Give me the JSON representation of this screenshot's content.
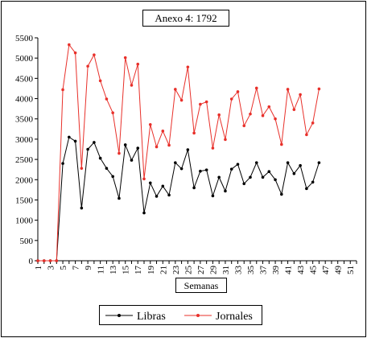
{
  "chart_data": {
    "type": "line",
    "title": "Anexo 4: 1792",
    "xlabel": "Semanas",
    "ylabel": "",
    "ylim": [
      0,
      5500
    ],
    "ytick_step": 500,
    "xlim": [
      1,
      52
    ],
    "x_tick_labels": [
      1,
      3,
      5,
      7,
      9,
      11,
      13,
      15,
      17,
      19,
      21,
      23,
      25,
      27,
      29,
      31,
      33,
      35,
      37,
      39,
      41,
      43,
      45,
      47,
      49,
      51
    ],
    "grid": false,
    "legend_position": "bottom",
    "x": [
      1,
      2,
      3,
      4,
      5,
      6,
      7,
      8,
      9,
      10,
      11,
      12,
      13,
      14,
      15,
      16,
      17,
      18,
      19,
      20,
      21,
      22,
      23,
      24,
      25,
      26,
      27,
      28,
      29,
      30,
      31,
      32,
      33,
      34,
      35,
      36,
      37,
      38,
      39,
      40,
      41,
      42,
      43,
      44,
      45,
      46
    ],
    "series": [
      {
        "name": "Libras",
        "color": "#000000",
        "values": [
          0,
          0,
          0,
          0,
          2400,
          3050,
          2950,
          1300,
          2750,
          2920,
          2530,
          2280,
          2080,
          1540,
          2860,
          2480,
          2780,
          1180,
          1920,
          1590,
          1840,
          1620,
          2420,
          2270,
          2740,
          1800,
          2210,
          2240,
          1600,
          2060,
          1720,
          2260,
          2380,
          1900,
          2060,
          2420,
          2060,
          2200,
          2000,
          1640,
          2420,
          2150,
          2350,
          1780,
          1940,
          2420
        ]
      },
      {
        "name": "Jornales",
        "color": "#e8302a",
        "values": [
          0,
          0,
          0,
          0,
          4220,
          5330,
          5130,
          2280,
          4800,
          5080,
          4440,
          3990,
          3650,
          2650,
          5010,
          4330,
          4850,
          2020,
          3360,
          2810,
          3200,
          2850,
          4230,
          3960,
          4780,
          3150,
          3860,
          3920,
          2780,
          3600,
          2990,
          3990,
          4170,
          3330,
          3620,
          4260,
          3580,
          3800,
          3500,
          2870,
          4230,
          3730,
          4100,
          3110,
          3400,
          4240
        ]
      }
    ]
  }
}
